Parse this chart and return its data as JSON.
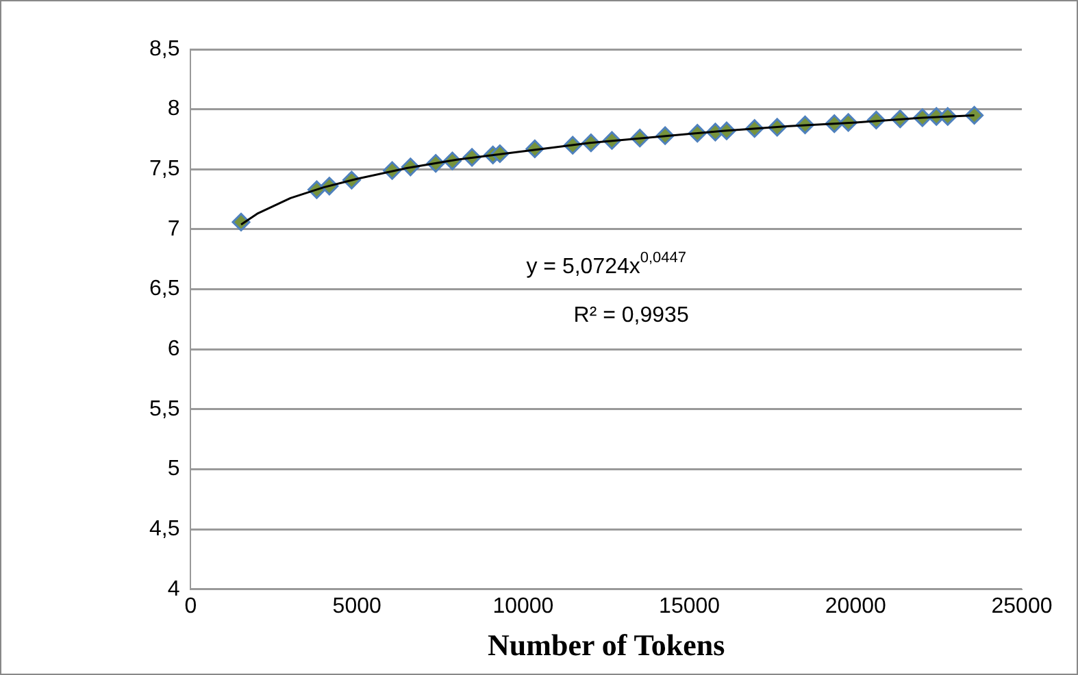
{
  "chart_data": {
    "type": "scatter",
    "xlabel": "Number of Tokens",
    "series": [
      {
        "type": "scatter",
        "color": "#77933c",
        "x": [
          1515,
          3790,
          4170,
          4840,
          6060,
          6610,
          7370,
          7870,
          8460,
          9090,
          9300,
          10350,
          11490,
          12040,
          12670,
          13510,
          14270,
          15240,
          15780,
          16120,
          16960,
          17640,
          18480,
          19360,
          19780,
          20620,
          21340,
          22010,
          22430,
          22770,
          23570
        ],
        "values": [
          7.06,
          7.33,
          7.36,
          7.41,
          7.49,
          7.52,
          7.55,
          7.57,
          7.6,
          7.62,
          7.63,
          7.67,
          7.7,
          7.72,
          7.74,
          7.76,
          7.78,
          7.8,
          7.81,
          7.82,
          7.84,
          7.85,
          7.87,
          7.88,
          7.89,
          7.91,
          7.92,
          7.93,
          7.94,
          7.94,
          7.95
        ]
      },
      {
        "type": "line",
        "marker": "none",
        "color": "#000000",
        "x": [
          1515,
          2000,
          3000,
          4000,
          5000,
          6500,
          8000,
          10000,
          12000,
          14000,
          16000,
          18000,
          20000,
          22000,
          23570
        ],
        "values": [
          7.04,
          7.13,
          7.26,
          7.35,
          7.42,
          7.51,
          7.58,
          7.65,
          7.72,
          7.77,
          7.82,
          7.86,
          7.89,
          7.93,
          7.95
        ]
      }
    ],
    "marker": "diamond",
    "grid": "y",
    "xlim": [
      0,
      25000
    ],
    "xticks": [
      0,
      5000,
      10000,
      15000,
      20000,
      25000
    ],
    "ylim": [
      4,
      8.5
    ],
    "yticks": [
      4,
      {
        "value": 4.5,
        "label": "4,5"
      },
      5,
      {
        "value": 5.5,
        "label": "5,5"
      },
      6,
      {
        "value": 6.5,
        "label": "6,5"
      },
      7,
      {
        "value": 7.5,
        "label": "7,5"
      },
      8,
      {
        "value": 8.5,
        "label": "8,5"
      }
    ],
    "annotations": [
      "y = 5,0724x$^{0,0447}$",
      "R² = 0,9935"
    ]
  }
}
